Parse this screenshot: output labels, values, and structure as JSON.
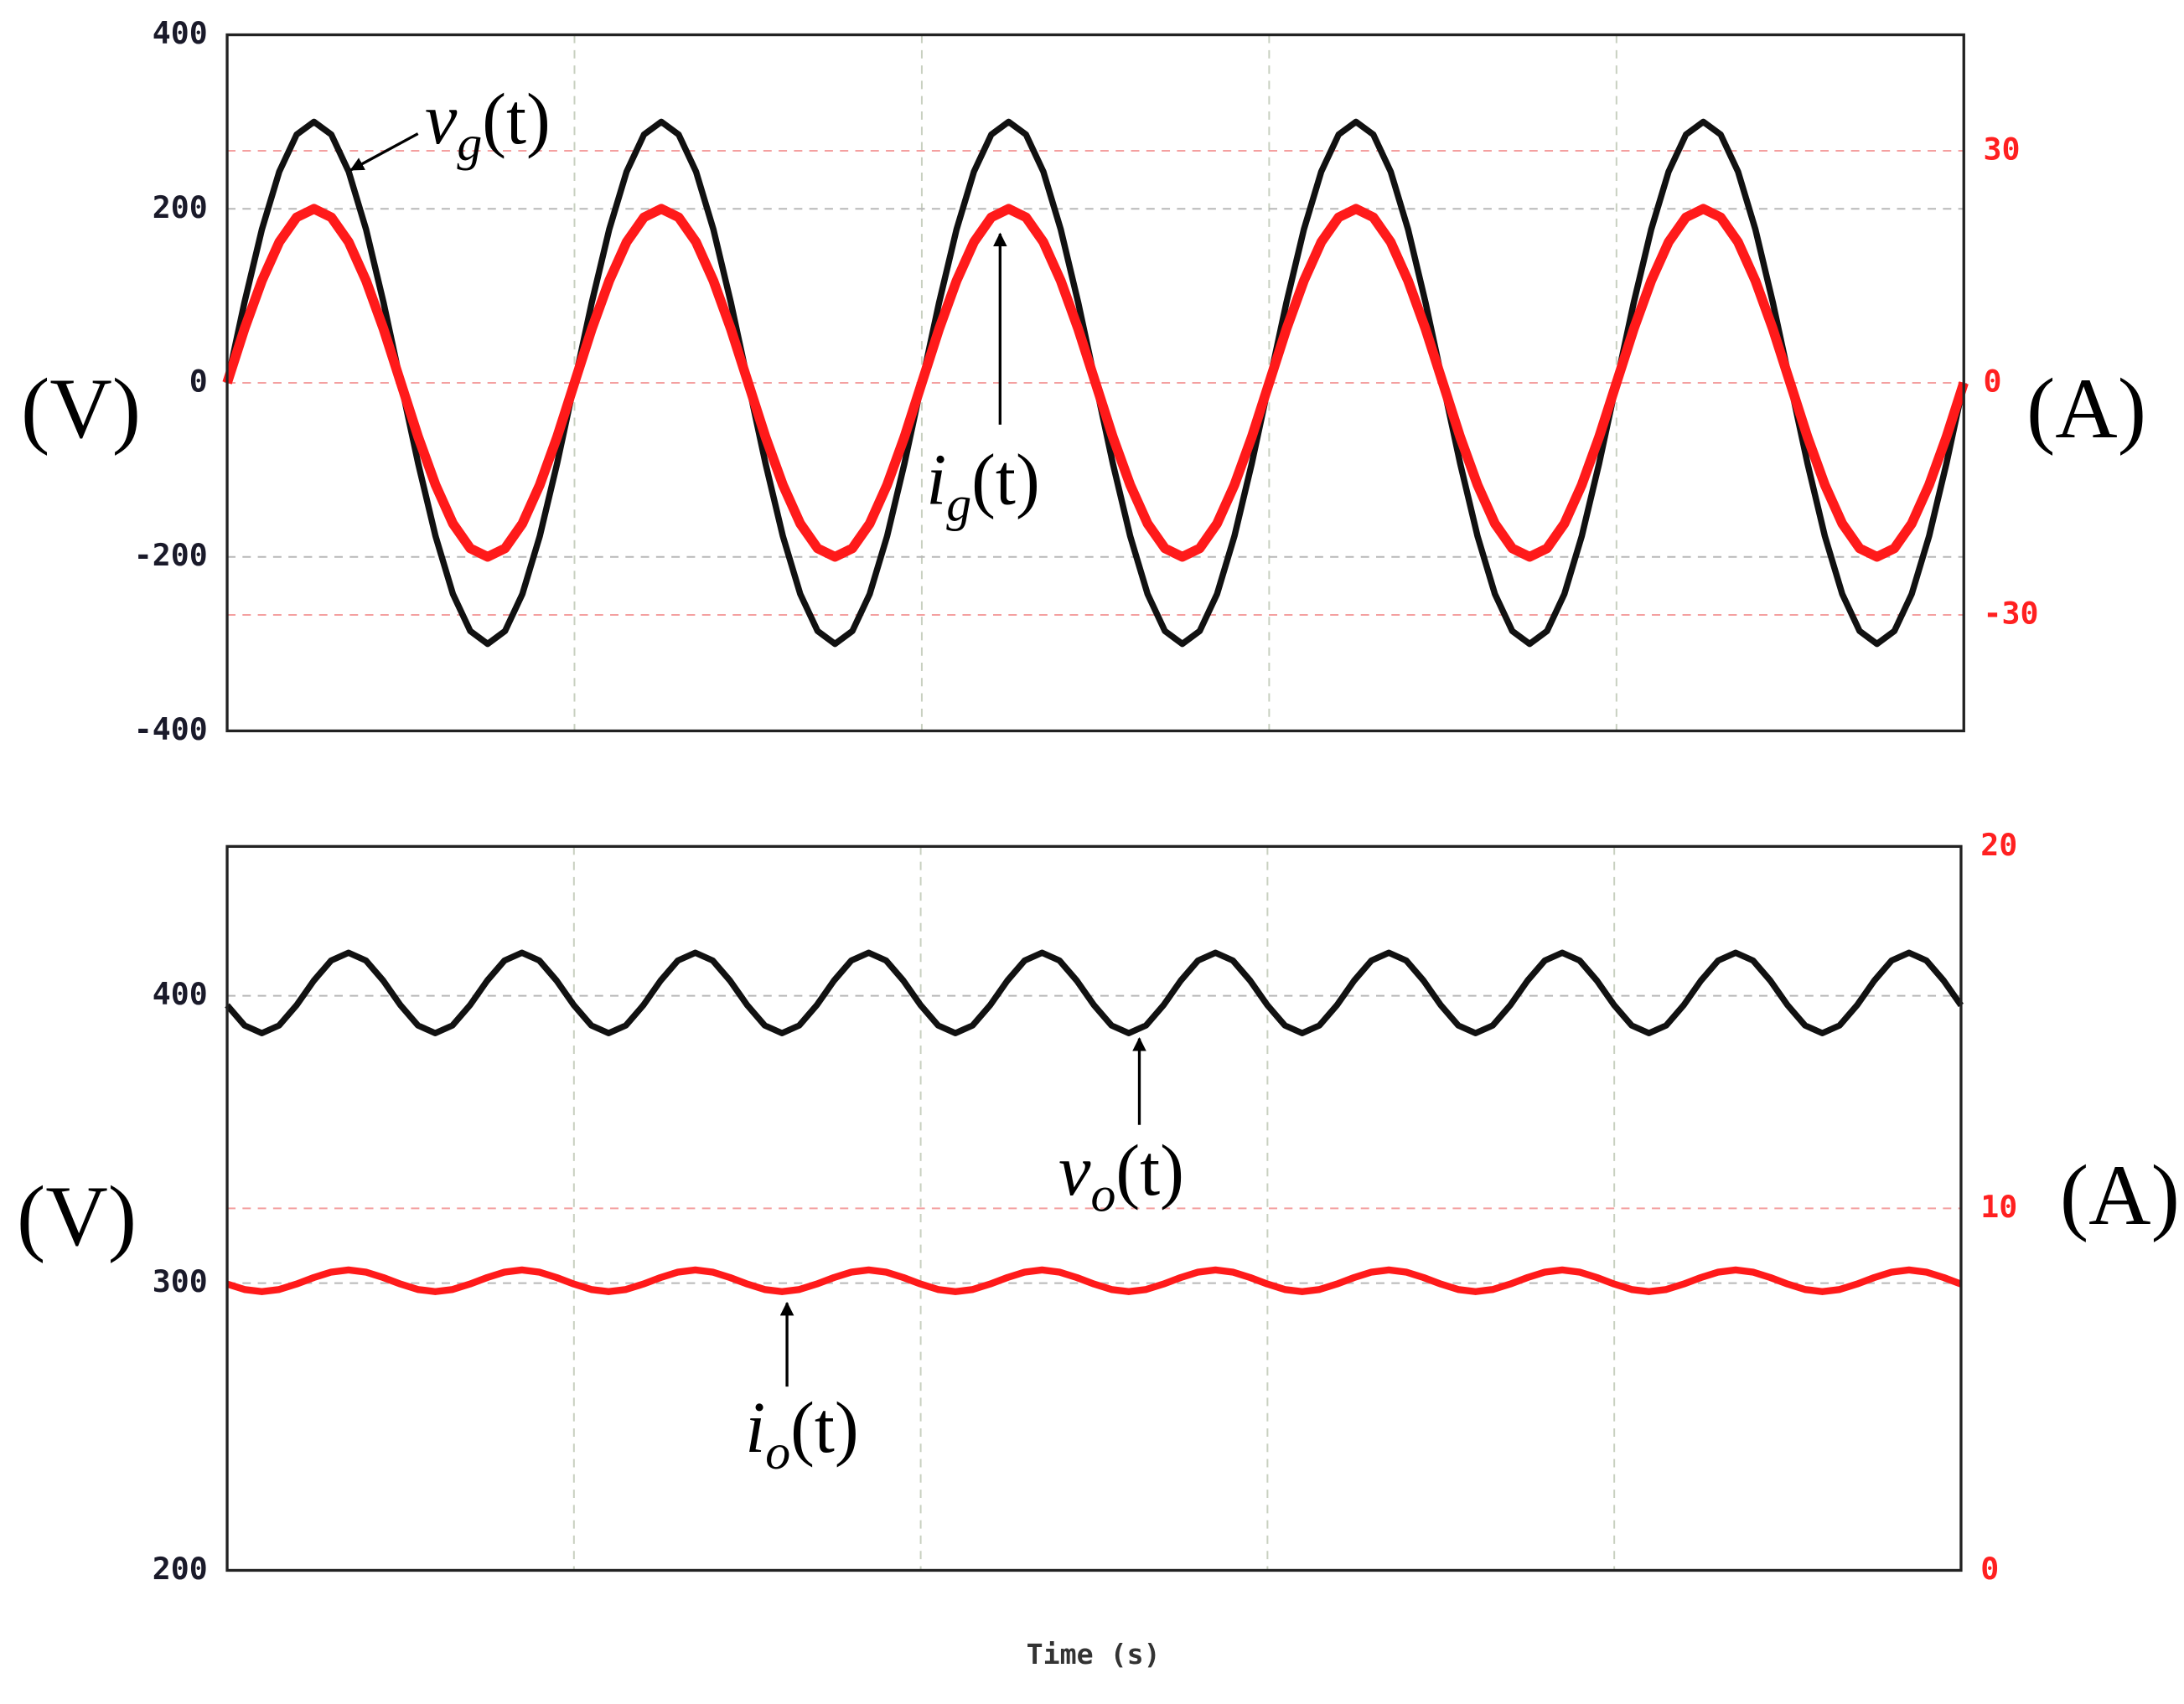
{
  "chart_data": [
    {
      "type": "line",
      "y_label": "(V)",
      "y2_label": "(A)",
      "x": [
        0,
        1,
        2,
        3,
        4,
        5,
        6,
        7,
        8,
        9,
        10,
        11,
        12,
        13,
        14,
        15,
        16,
        17,
        18,
        19,
        20,
        21,
        22,
        23,
        24,
        25,
        26,
        27,
        28,
        29,
        30,
        31,
        32,
        33,
        34,
        35,
        36,
        37,
        38,
        39,
        40,
        41,
        42,
        43,
        44,
        45,
        46,
        47,
        48,
        49,
        50,
        51,
        52,
        53,
        54,
        55,
        56,
        57,
        58,
        59,
        60,
        61,
        62,
        63,
        64,
        65,
        66,
        67,
        68,
        69,
        70,
        71,
        72,
        73,
        74,
        75,
        76,
        77,
        78,
        79,
        80,
        81,
        82,
        83,
        84,
        85,
        86,
        87,
        88,
        89,
        90,
        91,
        92,
        93,
        94,
        95,
        96,
        97,
        98,
        99,
        100
      ],
      "xlim": [
        0,
        100
      ],
      "xticks": [
        0,
        20,
        40,
        60,
        80,
        100
      ],
      "ylim": [
        -400,
        400
      ],
      "yticks": [
        -400,
        -200,
        0,
        200,
        400
      ],
      "y2lim": [
        -45,
        45
      ],
      "y2ticks": [
        -30,
        0,
        30
      ],
      "grid": true,
      "series": [
        {
          "name": "vg(t)",
          "color": "#111111",
          "axis": "y",
          "values": [
            0,
            92.7,
            176.3,
            242.7,
            285.3,
            300,
            285.3,
            242.7,
            176.3,
            92.7,
            0,
            -92.7,
            -176.3,
            -242.7,
            -285.3,
            -300,
            -285.3,
            -242.7,
            -176.3,
            -92.7,
            0,
            92.7,
            176.3,
            242.7,
            285.3,
            300,
            285.3,
            242.7,
            176.3,
            92.7,
            0,
            -92.7,
            -176.3,
            -242.7,
            -285.3,
            -300,
            -285.3,
            -242.7,
            -176.3,
            -92.7,
            0,
            92.7,
            176.3,
            242.7,
            285.3,
            300,
            285.3,
            242.7,
            176.3,
            92.7,
            0,
            -92.7,
            -176.3,
            -242.7,
            -285.3,
            -300,
            -285.3,
            -242.7,
            -176.3,
            -92.7,
            0,
            92.7,
            176.3,
            242.7,
            285.3,
            300,
            285.3,
            242.7,
            176.3,
            92.7,
            0,
            -92.7,
            -176.3,
            -242.7,
            -285.3,
            -300,
            -285.3,
            -242.7,
            -176.3,
            -92.7,
            0,
            92.7,
            176.3,
            242.7,
            285.3,
            300,
            285.3,
            242.7,
            176.3,
            92.7,
            0,
            -92.7,
            -176.3,
            -242.7,
            -285.3,
            -300,
            -285.3,
            -242.7,
            -176.3,
            -92.7,
            0
          ]
        },
        {
          "name": "ig(t)",
          "color": "#ff1a1a",
          "axis": "y2",
          "values": [
            0,
            7,
            13.2,
            18.2,
            21.4,
            22.5,
            21.4,
            18.2,
            13.2,
            7,
            0,
            -7,
            -13.2,
            -18.2,
            -21.4,
            -22.5,
            -21.4,
            -18.2,
            -13.2,
            -7,
            0,
            7,
            13.2,
            18.2,
            21.4,
            22.5,
            21.4,
            18.2,
            13.2,
            7,
            0,
            -7,
            -13.2,
            -18.2,
            -21.4,
            -22.5,
            -21.4,
            -18.2,
            -13.2,
            -7,
            0,
            7,
            13.2,
            18.2,
            21.4,
            22.5,
            21.4,
            18.2,
            13.2,
            7,
            0,
            -7,
            -13.2,
            -18.2,
            -21.4,
            -22.5,
            -21.4,
            -18.2,
            -13.2,
            -7,
            0,
            7,
            13.2,
            18.2,
            21.4,
            22.5,
            21.4,
            18.2,
            13.2,
            7,
            0,
            -7,
            -13.2,
            -18.2,
            -21.4,
            -22.5,
            -21.4,
            -18.2,
            -13.2,
            -7,
            0,
            7,
            13.2,
            18.2,
            21.4,
            22.5,
            21.4,
            18.2,
            13.2,
            7,
            0,
            -7,
            -13.2,
            -18.2,
            -21.4,
            -22.5,
            -21.4,
            -18.2,
            -13.2,
            -7,
            0
          ]
        }
      ],
      "annotations": [
        {
          "symbol": "v",
          "sub": "g",
          "arg": "(t)"
        },
        {
          "symbol": "i",
          "sub": "g",
          "arg": "(t)"
        }
      ]
    },
    {
      "type": "line",
      "y_label": "(V)",
      "y2_label": "(A)",
      "x_label": "Time (s)",
      "x": [
        0,
        1,
        2,
        3,
        4,
        5,
        6,
        7,
        8,
        9,
        10,
        11,
        12,
        13,
        14,
        15,
        16,
        17,
        18,
        19,
        20,
        21,
        22,
        23,
        24,
        25,
        26,
        27,
        28,
        29,
        30,
        31,
        32,
        33,
        34,
        35,
        36,
        37,
        38,
        39,
        40,
        41,
        42,
        43,
        44,
        45,
        46,
        47,
        48,
        49,
        50,
        51,
        52,
        53,
        54,
        55,
        56,
        57,
        58,
        59,
        60,
        61,
        62,
        63,
        64,
        65,
        66,
        67,
        68,
        69,
        70,
        71,
        72,
        73,
        74,
        75,
        76,
        77,
        78,
        79,
        80,
        81,
        82,
        83,
        84,
        85,
        86,
        87,
        88,
        89,
        90,
        91,
        92,
        93,
        94,
        95,
        96,
        97,
        98,
        99,
        100
      ],
      "xlim": [
        0,
        100
      ],
      "xticks": [
        0,
        20,
        40,
        60,
        80,
        100
      ],
      "ylim": [
        200,
        452
      ],
      "yticks": [
        200,
        300,
        400
      ],
      "y2lim": [
        0,
        20
      ],
      "y2ticks": [
        0,
        10,
        20
      ],
      "grid": true,
      "series": [
        {
          "name": "vo(t)",
          "color": "#111111",
          "axis": "y",
          "values": [
            396.7,
            389.7,
            387,
            389.7,
            396.7,
            405.3,
            412.3,
            415,
            412.3,
            405.3,
            396.7,
            389.7,
            387,
            389.7,
            396.7,
            405.3,
            412.3,
            415,
            412.3,
            405.3,
            396.7,
            389.7,
            387,
            389.7,
            396.7,
            405.3,
            412.3,
            415,
            412.3,
            405.3,
            396.7,
            389.7,
            387,
            389.7,
            396.7,
            405.3,
            412.3,
            415,
            412.3,
            405.3,
            396.7,
            389.7,
            387,
            389.7,
            396.7,
            405.3,
            412.3,
            415,
            412.3,
            405.3,
            396.7,
            389.7,
            387,
            389.7,
            396.7,
            405.3,
            412.3,
            415,
            412.3,
            405.3,
            396.7,
            389.7,
            387,
            389.7,
            396.7,
            405.3,
            412.3,
            415,
            412.3,
            405.3,
            396.7,
            389.7,
            387,
            389.7,
            396.7,
            405.3,
            412.3,
            415,
            412.3,
            405.3,
            396.7,
            389.7,
            387,
            389.7,
            396.7,
            405.3,
            412.3,
            415,
            412.3,
            405.3,
            396.7,
            389.7,
            387,
            389.7,
            396.7,
            405.3,
            412.3,
            415,
            412.3,
            405.3,
            396.7
          ]
        },
        {
          "name": "io(t)",
          "color": "#ff1a1a",
          "axis": "y2",
          "values": [
            7.91,
            7.76,
            7.7,
            7.76,
            7.91,
            8.09,
            8.24,
            8.3,
            8.24,
            8.09,
            7.91,
            7.76,
            7.7,
            7.76,
            7.91,
            8.09,
            8.24,
            8.3,
            8.24,
            8.09,
            7.91,
            7.76,
            7.7,
            7.76,
            7.91,
            8.09,
            8.24,
            8.3,
            8.24,
            8.09,
            7.91,
            7.76,
            7.7,
            7.76,
            7.91,
            8.09,
            8.24,
            8.3,
            8.24,
            8.09,
            7.91,
            7.76,
            7.7,
            7.76,
            7.91,
            8.09,
            8.24,
            8.3,
            8.24,
            8.09,
            7.91,
            7.76,
            7.7,
            7.76,
            7.91,
            8.09,
            8.24,
            8.3,
            8.24,
            8.09,
            7.91,
            7.76,
            7.7,
            7.76,
            7.91,
            8.09,
            8.24,
            8.3,
            8.24,
            8.09,
            7.91,
            7.76,
            7.7,
            7.76,
            7.91,
            8.09,
            8.24,
            8.3,
            8.24,
            8.09,
            7.91,
            7.76,
            7.7,
            7.76,
            7.91,
            8.09,
            8.24,
            8.3,
            8.24,
            8.09,
            7.91,
            7.76,
            7.7,
            7.76,
            7.91,
            8.09,
            8.24,
            8.3,
            8.24,
            8.09,
            7.91
          ]
        }
      ],
      "annotations": [
        {
          "symbol": "v",
          "sub": "o",
          "arg": "(t)"
        },
        {
          "symbol": "i",
          "sub": "o",
          "arg": "(t)"
        }
      ]
    }
  ]
}
